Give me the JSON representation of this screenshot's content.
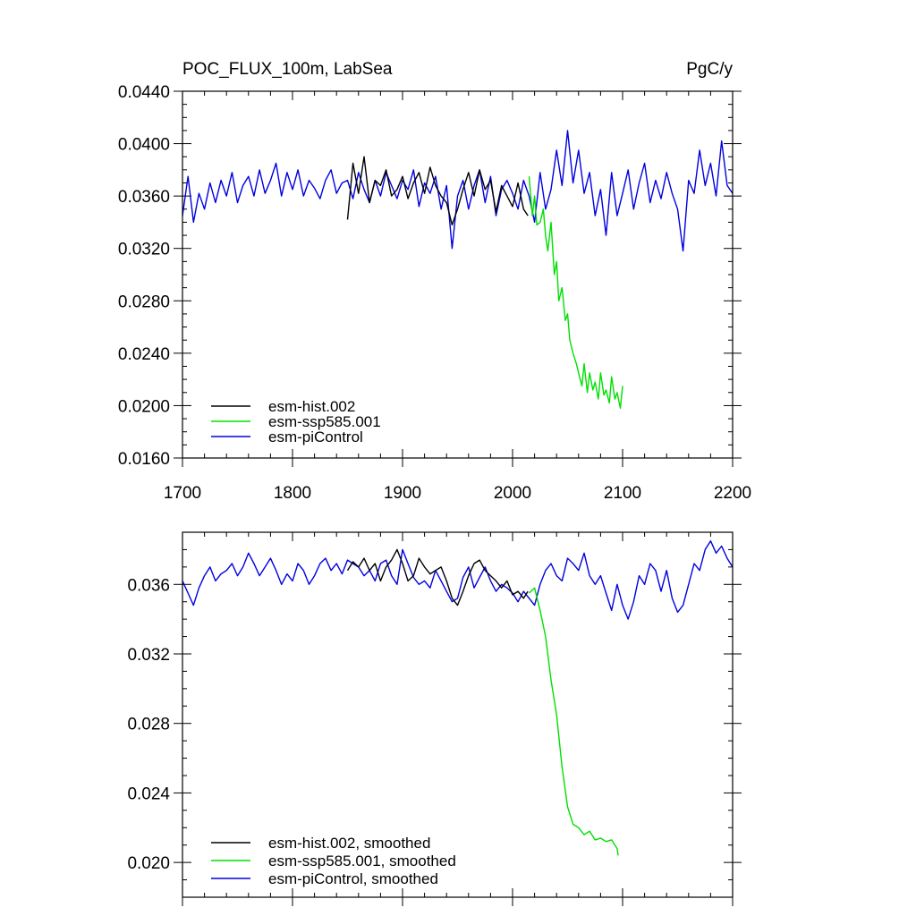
{
  "chart_data": [
    {
      "type": "line",
      "title_left": "POC_FLUX_100m, LabSea",
      "title_right": "PgC/y",
      "xlim": [
        1700,
        2200
      ],
      "ylim": [
        0.016,
        0.044
      ],
      "x_ticks": [
        1700,
        1800,
        1900,
        2000,
        2100,
        2200
      ],
      "x_tick_labels": [
        "1700",
        "1800",
        "1900",
        "2000",
        "2100",
        "2200"
      ],
      "y_ticks": [
        0.016,
        0.02,
        0.024,
        0.028,
        0.032,
        0.036,
        0.04,
        0.044
      ],
      "y_tick_labels": [
        "0.0160",
        "0.0200",
        "0.0240",
        "0.0280",
        "0.0320",
        "0.0360",
        "0.0400",
        "0.0440"
      ],
      "legend_position": "bottom-left",
      "series": [
        {
          "name": "esm-hist.002",
          "color": "#000000",
          "x": [
            1850,
            1855,
            1860,
            1865,
            1870,
            1875,
            1880,
            1885,
            1890,
            1895,
            1900,
            1905,
            1910,
            1915,
            1920,
            1925,
            1930,
            1935,
            1940,
            1945,
            1950,
            1955,
            1960,
            1965,
            1970,
            1975,
            1980,
            1985,
            1990,
            1995,
            2000,
            2005,
            2010,
            2014
          ],
          "y": [
            0.0342,
            0.0385,
            0.0362,
            0.039,
            0.0355,
            0.0372,
            0.0368,
            0.038,
            0.036,
            0.0365,
            0.0375,
            0.0358,
            0.037,
            0.0378,
            0.0362,
            0.0382,
            0.0368,
            0.036,
            0.0355,
            0.0338,
            0.035,
            0.0365,
            0.0378,
            0.036,
            0.038,
            0.0365,
            0.0372,
            0.0348,
            0.0368,
            0.036,
            0.0352,
            0.037,
            0.035,
            0.0345
          ]
        },
        {
          "name": "esm-ssp585.001",
          "color": "#00e000",
          "x": [
            2015,
            2018,
            2020,
            2022,
            2025,
            2028,
            2030,
            2032,
            2035,
            2038,
            2040,
            2042,
            2045,
            2048,
            2050,
            2052,
            2055,
            2058,
            2060,
            2063,
            2065,
            2068,
            2070,
            2073,
            2075,
            2078,
            2080,
            2083,
            2085,
            2088,
            2090,
            2093,
            2095,
            2098,
            2100
          ],
          "y": [
            0.0375,
            0.0345,
            0.036,
            0.0338,
            0.034,
            0.035,
            0.033,
            0.0318,
            0.034,
            0.03,
            0.031,
            0.028,
            0.029,
            0.0265,
            0.027,
            0.025,
            0.024,
            0.0232,
            0.0225,
            0.0215,
            0.0232,
            0.021,
            0.0225,
            0.0212,
            0.0218,
            0.0205,
            0.0225,
            0.0208,
            0.0212,
            0.0202,
            0.0222,
            0.0205,
            0.021,
            0.0198,
            0.0215
          ]
        },
        {
          "name": "esm-piControl",
          "color": "#0000e0",
          "x": [
            1700,
            1705,
            1710,
            1715,
            1720,
            1725,
            1730,
            1735,
            1740,
            1745,
            1750,
            1755,
            1760,
            1765,
            1770,
            1775,
            1780,
            1785,
            1790,
            1795,
            1800,
            1805,
            1810,
            1815,
            1820,
            1825,
            1830,
            1835,
            1840,
            1845,
            1850,
            1855,
            1860,
            1865,
            1870,
            1875,
            1880,
            1885,
            1890,
            1895,
            1900,
            1905,
            1910,
            1915,
            1920,
            1925,
            1930,
            1935,
            1940,
            1945,
            1950,
            1955,
            1960,
            1965,
            1970,
            1975,
            1980,
            1985,
            1990,
            1995,
            2000,
            2005,
            2010,
            2015,
            2020,
            2025,
            2030,
            2035,
            2040,
            2045,
            2050,
            2055,
            2060,
            2065,
            2070,
            2075,
            2080,
            2085,
            2090,
            2095,
            2100,
            2105,
            2110,
            2115,
            2120,
            2125,
            2130,
            2135,
            2140,
            2145,
            2150,
            2155,
            2160,
            2165,
            2170,
            2175,
            2180,
            2185,
            2190,
            2195,
            2200
          ],
          "y": [
            0.0345,
            0.0375,
            0.034,
            0.0362,
            0.035,
            0.037,
            0.0355,
            0.0372,
            0.036,
            0.0378,
            0.0355,
            0.0368,
            0.0375,
            0.036,
            0.038,
            0.0362,
            0.0372,
            0.0385,
            0.036,
            0.0378,
            0.0365,
            0.038,
            0.036,
            0.0372,
            0.0366,
            0.0358,
            0.0372,
            0.038,
            0.0362,
            0.037,
            0.0372,
            0.0358,
            0.0378,
            0.0365,
            0.0355,
            0.0372,
            0.036,
            0.0378,
            0.0368,
            0.0358,
            0.0372,
            0.0365,
            0.038,
            0.0352,
            0.037,
            0.0362,
            0.0375,
            0.035,
            0.0368,
            0.032,
            0.036,
            0.0372,
            0.035,
            0.0368,
            0.038,
            0.0355,
            0.0375,
            0.0345,
            0.0365,
            0.0372,
            0.0362,
            0.035,
            0.0372,
            0.036,
            0.034,
            0.0378,
            0.035,
            0.0365,
            0.0395,
            0.0368,
            0.041,
            0.037,
            0.0395,
            0.0362,
            0.0378,
            0.0345,
            0.0365,
            0.033,
            0.0378,
            0.0345,
            0.0362,
            0.038,
            0.035,
            0.037,
            0.0385,
            0.0355,
            0.0372,
            0.0358,
            0.0378,
            0.0362,
            0.035,
            0.0318,
            0.0372,
            0.0362,
            0.0395,
            0.0368,
            0.0385,
            0.036,
            0.0402,
            0.0368,
            0.0362
          ]
        }
      ]
    },
    {
      "type": "line",
      "xlim": [
        1700,
        2200
      ],
      "ylim": [
        0.018,
        0.039
      ],
      "y_ticks": [
        0.02,
        0.024,
        0.028,
        0.032,
        0.036
      ],
      "y_tick_labels": [
        "0.020",
        "0.024",
        "0.028",
        "0.032",
        "0.036"
      ],
      "legend_position": "bottom-left",
      "series": [
        {
          "name": "esm-hist.002, smoothed",
          "color": "#000000",
          "x": [
            1850,
            1855,
            1860,
            1865,
            1870,
            1875,
            1880,
            1885,
            1890,
            1895,
            1900,
            1905,
            1910,
            1915,
            1920,
            1925,
            1930,
            1935,
            1940,
            1945,
            1950,
            1955,
            1960,
            1965,
            1970,
            1975,
            1980,
            1985,
            1990,
            1995,
            2000,
            2005,
            2010,
            2014
          ],
          "y": [
            0.0368,
            0.0373,
            0.037,
            0.0375,
            0.0368,
            0.0372,
            0.0362,
            0.037,
            0.0374,
            0.038,
            0.0372,
            0.0362,
            0.0365,
            0.0375,
            0.037,
            0.0366,
            0.0368,
            0.037,
            0.0362,
            0.0352,
            0.0348,
            0.0356,
            0.0365,
            0.0372,
            0.0374,
            0.0368,
            0.0365,
            0.0362,
            0.0358,
            0.0362,
            0.0354,
            0.0356,
            0.0352,
            0.0356
          ]
        },
        {
          "name": "esm-ssp585.001, smoothed",
          "color": "#00e000",
          "x": [
            2015,
            2020,
            2025,
            2030,
            2035,
            2040,
            2045,
            2050,
            2055,
            2060,
            2065,
            2070,
            2075,
            2080,
            2085,
            2090,
            2095,
            2096
          ],
          "y": [
            0.0355,
            0.0358,
            0.0345,
            0.033,
            0.0305,
            0.0285,
            0.0255,
            0.0232,
            0.0222,
            0.022,
            0.0216,
            0.0218,
            0.0213,
            0.0214,
            0.0212,
            0.0213,
            0.0208,
            0.0204
          ]
        },
        {
          "name": "esm-piControl, smoothed",
          "color": "#0000e0",
          "x": [
            1700,
            1705,
            1710,
            1715,
            1720,
            1725,
            1730,
            1735,
            1740,
            1745,
            1750,
            1755,
            1760,
            1765,
            1770,
            1775,
            1780,
            1785,
            1790,
            1795,
            1800,
            1805,
            1810,
            1815,
            1820,
            1825,
            1830,
            1835,
            1840,
            1845,
            1850,
            1855,
            1860,
            1865,
            1870,
            1875,
            1880,
            1885,
            1890,
            1895,
            1900,
            1905,
            1910,
            1915,
            1920,
            1925,
            1930,
            1935,
            1940,
            1945,
            1950,
            1955,
            1960,
            1965,
            1970,
            1975,
            1980,
            1985,
            1990,
            1995,
            2000,
            2005,
            2010,
            2015,
            2020,
            2025,
            2030,
            2035,
            2040,
            2045,
            2050,
            2055,
            2060,
            2065,
            2070,
            2075,
            2080,
            2085,
            2090,
            2095,
            2100,
            2105,
            2110,
            2115,
            2120,
            2125,
            2130,
            2135,
            2140,
            2145,
            2150,
            2155,
            2160,
            2165,
            2170,
            2175,
            2180,
            2185,
            2190,
            2195,
            2200
          ],
          "y": [
            0.0362,
            0.0355,
            0.0348,
            0.0358,
            0.0365,
            0.037,
            0.0362,
            0.0366,
            0.0368,
            0.0372,
            0.0365,
            0.037,
            0.0378,
            0.0372,
            0.0365,
            0.037,
            0.0375,
            0.0368,
            0.036,
            0.0366,
            0.0362,
            0.0372,
            0.0368,
            0.036,
            0.0365,
            0.0372,
            0.0375,
            0.0368,
            0.0372,
            0.0366,
            0.0374,
            0.0372,
            0.037,
            0.0365,
            0.0368,
            0.0362,
            0.0372,
            0.0374,
            0.0365,
            0.036,
            0.038,
            0.0372,
            0.0364,
            0.036,
            0.0362,
            0.0358,
            0.0368,
            0.0362,
            0.0356,
            0.035,
            0.0352,
            0.0364,
            0.037,
            0.0358,
            0.0364,
            0.037,
            0.0362,
            0.0356,
            0.036,
            0.0358,
            0.0355,
            0.035,
            0.0356,
            0.0352,
            0.0348,
            0.036,
            0.0368,
            0.0372,
            0.0365,
            0.0362,
            0.0375,
            0.0372,
            0.0368,
            0.0378,
            0.0365,
            0.036,
            0.0365,
            0.0355,
            0.0345,
            0.036,
            0.0348,
            0.034,
            0.035,
            0.0365,
            0.036,
            0.0372,
            0.0368,
            0.0356,
            0.0368,
            0.0352,
            0.0344,
            0.0348,
            0.036,
            0.0372,
            0.0368,
            0.038,
            0.0385,
            0.0378,
            0.0382,
            0.0375,
            0.037
          ]
        }
      ]
    }
  ]
}
